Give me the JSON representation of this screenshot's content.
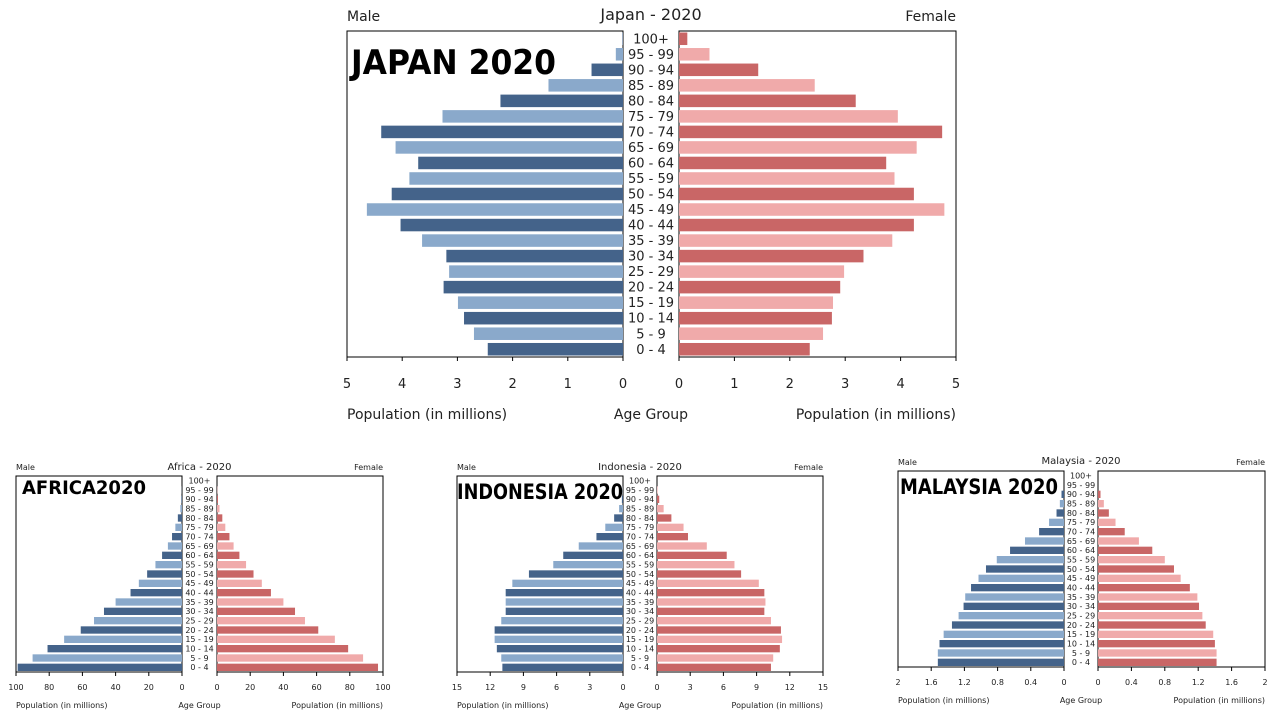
{
  "colors": {
    "male_dark": "#44638a",
    "male_light": "#8aa9cb",
    "female_dark": "#c96666",
    "female_light": "#f0aaaa",
    "frame": "#000000"
  },
  "chart_data": [
    {
      "type": "bar",
      "orientation": "horizontal-mirrored",
      "title": "Japan - 2020",
      "overlay_label": "JAPAN 2020",
      "left_label": "Male",
      "right_label": "Female",
      "xlabel_left": "Population (in millions)",
      "xlabel_center": "Age Group",
      "xlabel_right": "Population (in millions)",
      "xlim": [
        0,
        5
      ],
      "ticks": [
        "5",
        "4",
        "3",
        "2",
        "1",
        "0"
      ],
      "ticks_right": [
        "0",
        "1",
        "2",
        "3",
        "4",
        "5"
      ],
      "categories": [
        "100+",
        "95 - 99",
        "90 - 94",
        "85 - 89",
        "80 - 84",
        "75 - 79",
        "70 - 74",
        "65 - 69",
        "60 - 64",
        "55 - 59",
        "50 - 54",
        "45 - 49",
        "40 - 44",
        "35 - 39",
        "30 - 34",
        "25 - 29",
        "20 - 24",
        "15 - 19",
        "10 - 14",
        "5 - 9",
        "0 - 4"
      ],
      "series": [
        {
          "name": "Male",
          "values": [
            0.01,
            0.13,
            0.57,
            1.35,
            2.22,
            3.27,
            4.38,
            4.12,
            3.71,
            3.87,
            4.19,
            4.64,
            4.03,
            3.64,
            3.2,
            3.15,
            3.25,
            2.99,
            2.88,
            2.7,
            2.45
          ]
        },
        {
          "name": "Female",
          "values": [
            0.15,
            0.55,
            1.43,
            2.45,
            3.19,
            3.95,
            4.75,
            4.29,
            3.74,
            3.89,
            4.24,
            4.79,
            4.24,
            3.85,
            3.33,
            2.98,
            2.91,
            2.78,
            2.76,
            2.6,
            2.36
          ]
        }
      ],
      "grid": false
    },
    {
      "type": "bar",
      "orientation": "horizontal-mirrored",
      "title": "Africa - 2020",
      "overlay_label": "AFRICA2020",
      "left_label": "Male",
      "right_label": "Female",
      "xlabel_left": "Population (in millions)",
      "xlabel_center": "Age Group",
      "xlabel_right": "Population (in millions)",
      "xlim": [
        0,
        100
      ],
      "ticks": [
        "100",
        "80",
        "60",
        "40",
        "20",
        "0"
      ],
      "ticks_right": [
        "0",
        "20",
        "40",
        "60",
        "80",
        "100"
      ],
      "categories": [
        "100+",
        "95 - 99",
        "90 - 94",
        "85 - 89",
        "80 - 84",
        "75 - 79",
        "70 - 74",
        "65 - 69",
        "60 - 64",
        "55 - 59",
        "50 - 54",
        "45 - 49",
        "40 - 44",
        "35 - 39",
        "30 - 34",
        "25 - 29",
        "20 - 24",
        "15 - 19",
        "10 - 14",
        "5 - 9",
        "0 - 4"
      ],
      "series": [
        {
          "name": "Male",
          "values": [
            0.0,
            0.1,
            0.4,
            1.0,
            2.5,
            4.0,
            6.0,
            8.5,
            12.0,
            16.0,
            21.0,
            26.0,
            31.0,
            40.0,
            47.0,
            53.0,
            61.0,
            71.0,
            81.0,
            90.0,
            99.0
          ]
        },
        {
          "name": "Female",
          "values": [
            0.0,
            0.2,
            0.6,
            1.5,
            3.2,
            5.0,
            7.5,
            10.0,
            13.5,
            17.5,
            22.0,
            27.0,
            32.5,
            40.0,
            47.0,
            53.0,
            61.0,
            71.0,
            79.0,
            88.0,
            97.0
          ]
        }
      ],
      "grid": false
    },
    {
      "type": "bar",
      "orientation": "horizontal-mirrored",
      "title": "Indonesia - 2020",
      "overlay_label": "INDONESIA 2020",
      "left_label": "Male",
      "right_label": "Female",
      "xlabel_left": "Population (in millions)",
      "xlabel_center": "Age Group",
      "xlabel_right": "Population (in millions)",
      "xlim": [
        0,
        15
      ],
      "ticks": [
        "15",
        "12",
        "9",
        "6",
        "3",
        "0"
      ],
      "ticks_right": [
        "0",
        "3",
        "6",
        "9",
        "12",
        "15"
      ],
      "categories": [
        "100+",
        "95 - 99",
        "90 - 94",
        "85 - 89",
        "80 - 84",
        "75 - 79",
        "70 - 74",
        "65 - 69",
        "60 - 64",
        "55 - 59",
        "50 - 54",
        "45 - 49",
        "40 - 44",
        "35 - 39",
        "30 - 34",
        "25 - 29",
        "20 - 24",
        "15 - 19",
        "10 - 14",
        "5 - 9",
        "0 - 4"
      ],
      "series": [
        {
          "name": "Male",
          "values": [
            0.0,
            0.02,
            0.1,
            0.35,
            0.8,
            1.6,
            2.4,
            4.0,
            5.4,
            6.3,
            8.5,
            10.0,
            10.6,
            10.6,
            10.6,
            11.0,
            11.6,
            11.6,
            11.4,
            11.0,
            10.9
          ]
        },
        {
          "name": "Female",
          "values": [
            0.0,
            0.05,
            0.2,
            0.6,
            1.3,
            2.4,
            2.8,
            4.5,
            6.3,
            7.0,
            7.6,
            9.2,
            9.7,
            9.8,
            9.7,
            10.3,
            11.2,
            11.3,
            11.1,
            10.5,
            10.3
          ]
        }
      ],
      "grid": false
    },
    {
      "type": "bar",
      "orientation": "horizontal-mirrored",
      "title": "Malaysia - 2020",
      "overlay_label": "MALAYSIA 2020",
      "left_label": "Male",
      "right_label": "Female",
      "xlabel_left": "Population (in millions)",
      "xlabel_center": "Age Group",
      "xlabel_right": "Population (in millions)",
      "xlim": [
        0,
        2
      ],
      "ticks": [
        "2",
        "1.6",
        "1.2",
        "0.8",
        "0.4",
        "0"
      ],
      "ticks_right": [
        "0",
        "0.4",
        "0.8",
        "1.2",
        "1.6",
        "2"
      ],
      "categories": [
        "100+",
        "95 - 99",
        "90 - 94",
        "85 - 89",
        "80 - 84",
        "75 - 79",
        "70 - 74",
        "65 - 69",
        "60 - 64",
        "55 - 59",
        "50 - 54",
        "45 - 49",
        "40 - 44",
        "35 - 39",
        "30 - 34",
        "25 - 29",
        "20 - 24",
        "15 - 19",
        "10 - 14",
        "5 - 9",
        "0 - 4"
      ],
      "series": [
        {
          "name": "Male",
          "values": [
            0.0,
            0.0,
            0.03,
            0.05,
            0.09,
            0.18,
            0.3,
            0.47,
            0.65,
            0.81,
            0.94,
            1.03,
            1.12,
            1.19,
            1.21,
            1.27,
            1.35,
            1.45,
            1.5,
            1.52,
            1.52
          ]
        },
        {
          "name": "Female",
          "values": [
            0.0,
            0.0,
            0.03,
            0.07,
            0.13,
            0.21,
            0.32,
            0.49,
            0.65,
            0.8,
            0.91,
            0.99,
            1.1,
            1.19,
            1.21,
            1.25,
            1.29,
            1.38,
            1.4,
            1.42,
            1.42
          ]
        }
      ],
      "grid": false
    }
  ]
}
